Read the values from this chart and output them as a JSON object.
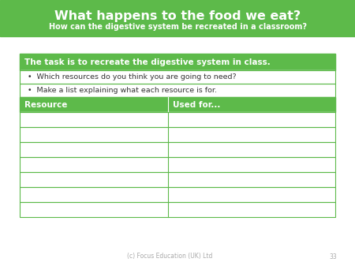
{
  "title_line1": "What happens to the food we eat?",
  "title_line2": "How can the digestive system be recreated in a classroom?",
  "task_text": "The task is to recreate the digestive system in class.",
  "bullet1": "Which resources do you think you are going to need?",
  "bullet2": "Make a list explaining what each resource is for.",
  "col1_header": "Resource",
  "col2_header": "Used for...",
  "green_color": "#5dba4a",
  "border_color": "#5dba4a",
  "white": "#ffffff",
  "dark_text": "#333333",
  "light_gray": "#cccccc",
  "num_data_rows": 7,
  "footer_text": "(c) Focus Education (UK) Ltd",
  "footer_page": "33",
  "bg_color": "#ffffff"
}
